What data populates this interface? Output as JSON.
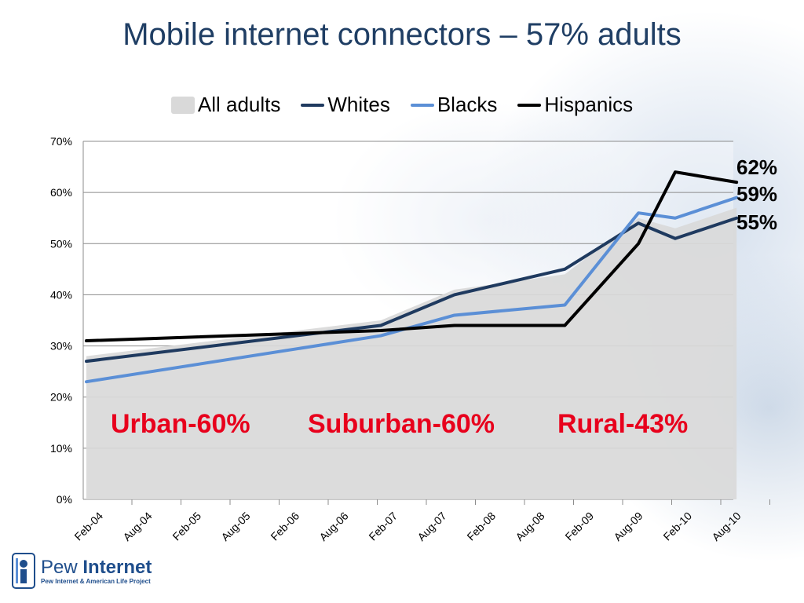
{
  "slide": {
    "title": "Mobile internet connectors – 57% adults"
  },
  "logo": {
    "name_part1": "Pew ",
    "name_part2": "Internet",
    "subtitle": "Pew Internet & American Life Project"
  },
  "colors": {
    "all_adults": "#d9d9d9",
    "whites": "#1f3a5f",
    "blacks": "#5b8fd6",
    "hispanics": "#000000",
    "annotation_red": "#e8001c",
    "title_blue": "#1f3e64"
  },
  "chart_data": {
    "type": "line",
    "title": "",
    "xlabel": "",
    "ylabel": "",
    "ylim": [
      0,
      70
    ],
    "grid": true,
    "legend_position": "top",
    "categories": [
      "Feb-04",
      "Aug-04",
      "Feb-05",
      "Aug-05",
      "Feb-06",
      "Aug-06",
      "Feb-07",
      "Aug-07",
      "Feb-08",
      "Aug-08",
      "Feb-09",
      "Aug-09",
      "Feb-10",
      "Aug-10"
    ],
    "y_ticks": [
      "0%",
      "10%",
      "20%",
      "30%",
      "40%",
      "50%",
      "60%",
      "70%"
    ],
    "series": [
      {
        "name": "All adults",
        "style": "area",
        "points": [
          [
            0,
            28
          ],
          [
            6,
            35
          ],
          [
            7.5,
            41
          ],
          [
            9.75,
            44
          ],
          [
            11.25,
            55
          ],
          [
            12,
            53
          ],
          [
            13.25,
            57
          ]
        ]
      },
      {
        "name": "Whites",
        "style": "line",
        "points": [
          [
            0,
            27
          ],
          [
            6,
            34
          ],
          [
            7.5,
            40
          ],
          [
            9.75,
            45
          ],
          [
            11.25,
            54
          ],
          [
            12,
            51
          ],
          [
            13.25,
            55
          ]
        ]
      },
      {
        "name": "Blacks",
        "style": "line",
        "points": [
          [
            0,
            23
          ],
          [
            6,
            32
          ],
          [
            7.5,
            36
          ],
          [
            9.75,
            38
          ],
          [
            11.25,
            56
          ],
          [
            12,
            55
          ],
          [
            13.25,
            59
          ]
        ]
      },
      {
        "name": "Hispanics",
        "style": "line",
        "points": [
          [
            0,
            31
          ],
          [
            6,
            33
          ],
          [
            7.5,
            34
          ],
          [
            9.75,
            34
          ],
          [
            11.25,
            50
          ],
          [
            12,
            64
          ],
          [
            13.25,
            62
          ]
        ]
      }
    ],
    "end_labels": [
      "62%",
      "59%",
      "55%"
    ],
    "annotations": [
      "Urban-60%",
      "Suburban-60%",
      "Rural-43%"
    ]
  }
}
